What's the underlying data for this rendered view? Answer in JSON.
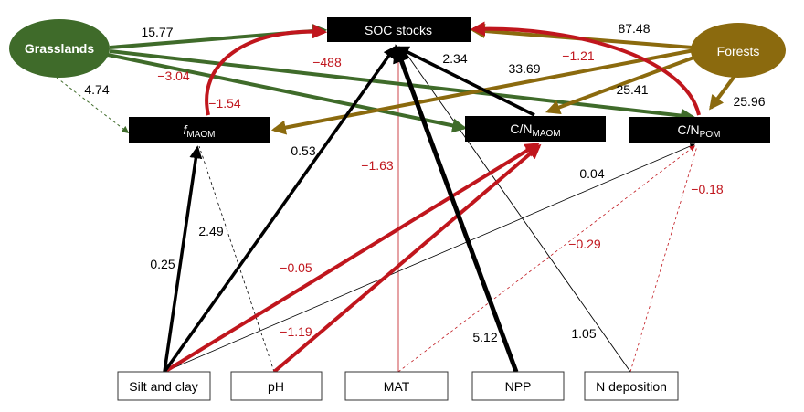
{
  "nodes": {
    "soc": {
      "label": "SOC stocks"
    },
    "fmaom": {
      "label_prefix": "f",
      "label_sub": "MAOM"
    },
    "cn_maom": {
      "label_prefix": "C/N",
      "label_sub": "MAOM"
    },
    "cn_pom": {
      "label_prefix": "C/N",
      "label_sub": "POM"
    },
    "grasslands": {
      "label": "Grasslands"
    },
    "forests": {
      "label": "Forests"
    },
    "silt": {
      "label": "Silt and clay"
    },
    "ph": {
      "label": "pH"
    },
    "mat": {
      "label": "MAT"
    },
    "npp": {
      "label": "NPP"
    },
    "ndep": {
      "label": "N deposition"
    }
  },
  "coefficients": {
    "grass_soc": "15.77",
    "grass_fmaom": "4.74",
    "grass_cnpom": "−488",
    "fmaom_soc_a": "−3.04",
    "fmaom_soc_b": "−1.54",
    "forest_soc": "87.48",
    "forest_soc_red": "−1.21",
    "forest_fmaom": "33.69",
    "forest_cnmaom": "25.41",
    "forest_cnpom": "25.96",
    "cnmaom_soc": "2.34",
    "silt_soc": "0.53",
    "mat_soc": "−1.63",
    "silt_fmaom": "0.25",
    "ph_fmaom": "2.49",
    "silt_cnmaom": "−0.05",
    "ph_cnmaom": "−1.19",
    "silt_cnpom": "0.04",
    "ndep_cnpom": "−0.18",
    "mat_cnpom": "−0.29",
    "npp_soc": "5.12",
    "ndep_cnmaom": "1.05"
  },
  "colors": {
    "green": "#3f6b2a",
    "olive": "#8b6a0e",
    "red": "#c0161d",
    "black": "#000000",
    "grassland_fill": "#3f6b2a",
    "forest_fill": "#8b6a0e"
  }
}
